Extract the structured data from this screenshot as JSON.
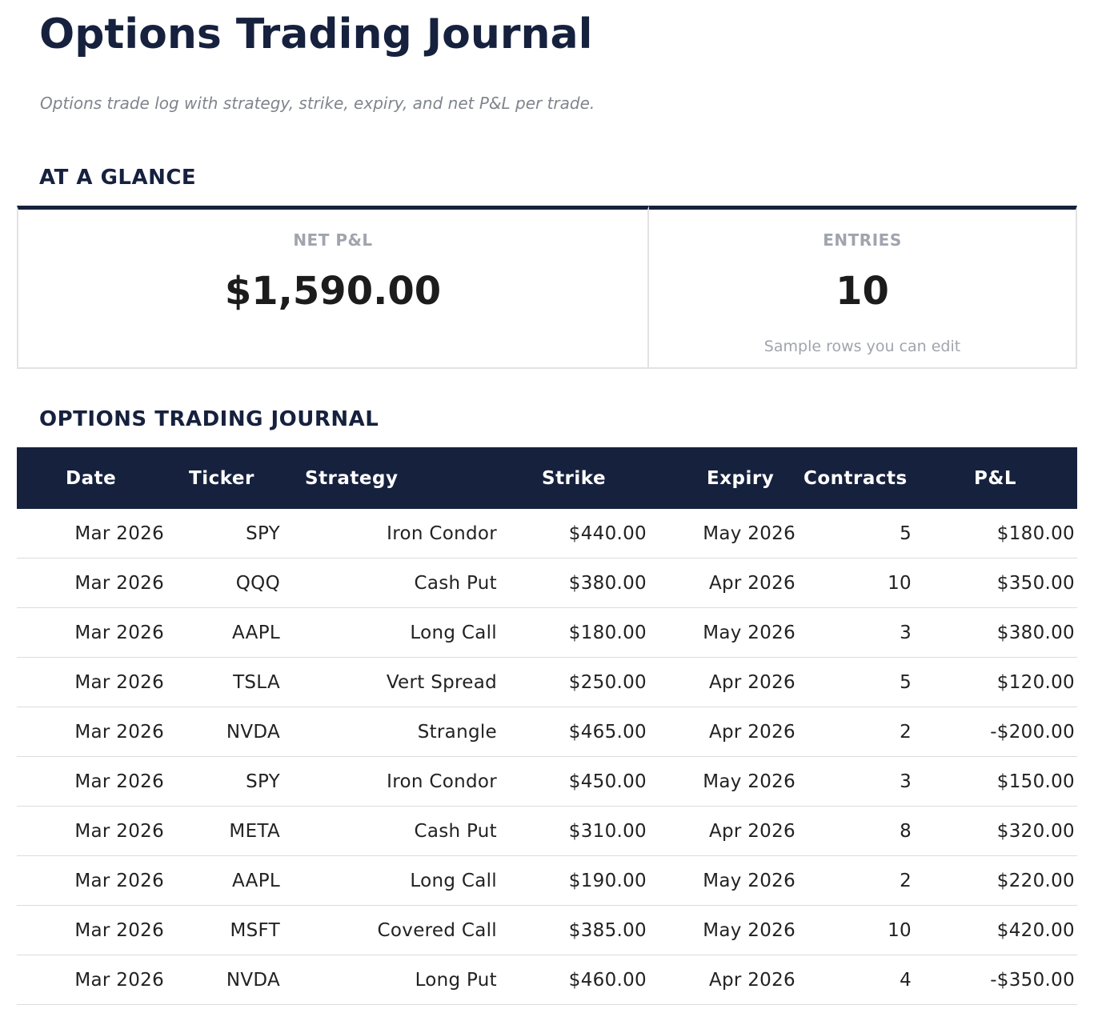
{
  "header": {
    "title": "Options Trading Journal",
    "subtitle": "Options trade log with strategy, strike, expiry, and net P&L per trade."
  },
  "glance": {
    "heading": "AT A GLANCE",
    "cards": [
      {
        "label": "NET P&L",
        "value": "$1,590.00"
      },
      {
        "label": "ENTRIES",
        "value": "10",
        "note": "Sample rows you can edit"
      }
    ]
  },
  "table": {
    "heading": "OPTIONS TRADING JOURNAL",
    "columns": [
      "Date",
      "Ticker",
      "Strategy",
      "Strike",
      "Expiry",
      "Contracts",
      "P&L"
    ],
    "rows": [
      [
        "Mar 2026",
        "SPY",
        "Iron Condor",
        "$440.00",
        "May 2026",
        "5",
        "$180.00"
      ],
      [
        "Mar 2026",
        "QQQ",
        "Cash Put",
        "$380.00",
        "Apr 2026",
        "10",
        "$350.00"
      ],
      [
        "Mar 2026",
        "AAPL",
        "Long Call",
        "$180.00",
        "May 2026",
        "3",
        "$380.00"
      ],
      [
        "Mar 2026",
        "TSLA",
        "Vert Spread",
        "$250.00",
        "Apr 2026",
        "5",
        "$120.00"
      ],
      [
        "Mar 2026",
        "NVDA",
        "Strangle",
        "$465.00",
        "Apr 2026",
        "2",
        "-$200.00"
      ],
      [
        "Mar 2026",
        "SPY",
        "Iron Condor",
        "$450.00",
        "May 2026",
        "3",
        "$150.00"
      ],
      [
        "Mar 2026",
        "META",
        "Cash Put",
        "$310.00",
        "Apr 2026",
        "8",
        "$320.00"
      ],
      [
        "Mar 2026",
        "AAPL",
        "Long Call",
        "$190.00",
        "May 2026",
        "2",
        "$220.00"
      ],
      [
        "Mar 2026",
        "MSFT",
        "Covered Call",
        "$385.00",
        "May 2026",
        "10",
        "$420.00"
      ],
      [
        "Mar 2026",
        "NVDA",
        "Long Put",
        "$460.00",
        "Apr 2026",
        "4",
        "-$350.00"
      ]
    ]
  }
}
